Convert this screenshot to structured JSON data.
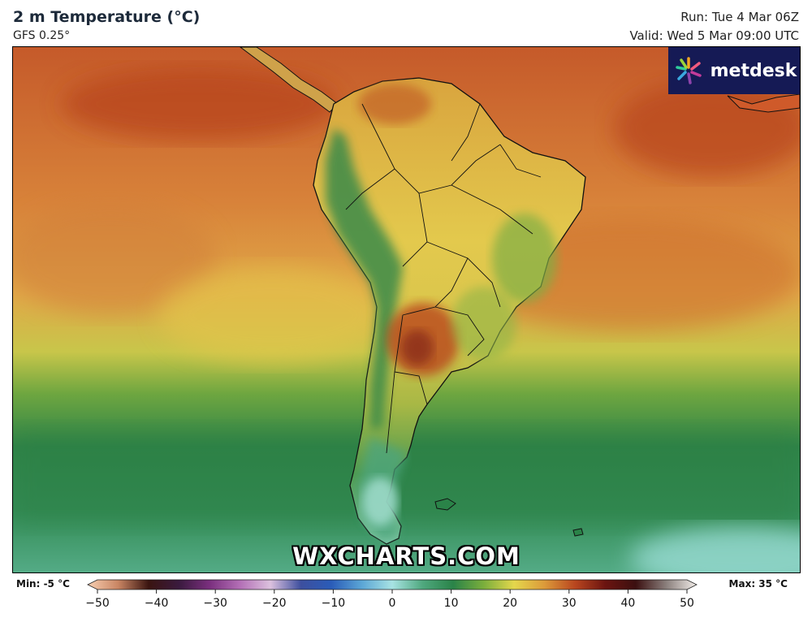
{
  "header": {
    "title": "2 m Temperature (°C)",
    "model": "GFS 0.25°",
    "run": "Run: Tue 4 Mar 06Z",
    "valid": "Valid: Wed 5 Mar 09:00 UTC"
  },
  "map": {
    "region": "South America",
    "watermark": "WXCHARTS.COM",
    "logo": {
      "text": "metdesk",
      "icon": "metdesk-flower-icon",
      "background": "#151a55"
    }
  },
  "legend": {
    "min_label": "Min: -5 °C",
    "max_label": "Max: 35 °C",
    "unit": "°C",
    "range": [
      -50,
      50
    ],
    "ticks": [
      {
        "value": -50,
        "label": "−50"
      },
      {
        "value": -40,
        "label": "−40"
      },
      {
        "value": -30,
        "label": "−30"
      },
      {
        "value": -20,
        "label": "−20"
      },
      {
        "value": -10,
        "label": "−10"
      },
      {
        "value": 0,
        "label": "0"
      },
      {
        "value": 10,
        "label": "10"
      },
      {
        "value": 20,
        "label": "20"
      },
      {
        "value": 30,
        "label": "30"
      },
      {
        "value": 40,
        "label": "40"
      },
      {
        "value": 50,
        "label": "50"
      }
    ],
    "colors": [
      {
        "value": -50,
        "color": "#f7cfb1"
      },
      {
        "value": -45,
        "color": "#c98563"
      },
      {
        "value": -40,
        "color": "#3a1410"
      },
      {
        "value": -35,
        "color": "#3a1a3e"
      },
      {
        "value": -30,
        "color": "#7a2f7e"
      },
      {
        "value": -25,
        "color": "#b36fb6"
      },
      {
        "value": -20,
        "color": "#dcc1de"
      },
      {
        "value": -15,
        "color": "#3d4f9e"
      },
      {
        "value": -10,
        "color": "#2a5cb8"
      },
      {
        "value": -5,
        "color": "#5ba6d6"
      },
      {
        "value": 0,
        "color": "#a8e3e3"
      },
      {
        "value": 5,
        "color": "#4fa87e"
      },
      {
        "value": 10,
        "color": "#2a8348"
      },
      {
        "value": 15,
        "color": "#7aae3c"
      },
      {
        "value": 20,
        "color": "#e4d74c"
      },
      {
        "value": 25,
        "color": "#dc9a3a"
      },
      {
        "value": 30,
        "color": "#b9461f"
      },
      {
        "value": 35,
        "color": "#6b1410"
      },
      {
        "value": 40,
        "color": "#3b1010"
      },
      {
        "value": 45,
        "color": "#8a7f7c"
      },
      {
        "value": 50,
        "color": "#f2ede9"
      }
    ]
  }
}
